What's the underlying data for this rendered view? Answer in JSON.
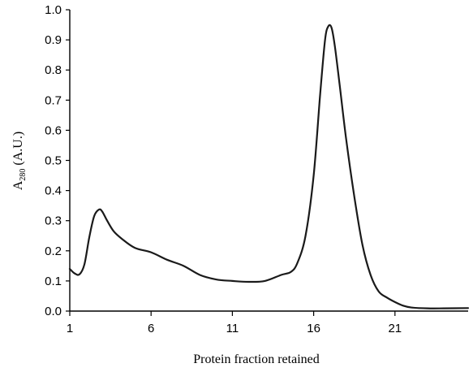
{
  "chart_data": {
    "type": "line",
    "title": "",
    "xlabel": "Protein fraction retained",
    "ylabel_main": "A",
    "ylabel_sub": "280",
    "ylabel_units": "(A.U.)",
    "xlim": [
      1,
      25.5
    ],
    "ylim": [
      0,
      1.0
    ],
    "x_ticks": [
      1,
      6,
      11,
      16,
      21
    ],
    "x_tick_labels": [
      "1",
      "6",
      "11",
      "16",
      "21"
    ],
    "y_ticks": [
      0.0,
      0.1,
      0.2,
      0.3,
      0.4,
      0.5,
      0.6,
      0.7,
      0.8,
      0.9,
      1.0
    ],
    "y_tick_labels": [
      "0.0",
      "0.1",
      "0.2",
      "0.3",
      "0.4",
      "0.5",
      "0.6",
      "0.7",
      "0.8",
      "0.9",
      "1.0"
    ],
    "grid": false,
    "series": [
      {
        "color": "#1a1a1a",
        "x": [
          1,
          1.3,
          1.6,
          1.9,
          2.2,
          2.5,
          2.8,
          3.0,
          3.3,
          3.7,
          4.2,
          5.0,
          6.0,
          7.0,
          8.0,
          9.0,
          10.0,
          11.0,
          12.0,
          13.0,
          14.0,
          14.6,
          15.0,
          15.5,
          16.0,
          16.4,
          16.7,
          16.9,
          17.1,
          17.3,
          17.6,
          18.0,
          18.5,
          19.0,
          19.5,
          20.0,
          20.5,
          21.0,
          21.5,
          22.0,
          23.0,
          24.0,
          25.5
        ],
        "y": [
          0.14,
          0.125,
          0.122,
          0.155,
          0.245,
          0.315,
          0.337,
          0.33,
          0.3,
          0.265,
          0.24,
          0.21,
          0.195,
          0.17,
          0.15,
          0.12,
          0.105,
          0.1,
          0.097,
          0.1,
          0.12,
          0.13,
          0.16,
          0.25,
          0.45,
          0.72,
          0.9,
          0.945,
          0.94,
          0.88,
          0.75,
          0.57,
          0.38,
          0.22,
          0.12,
          0.065,
          0.045,
          0.03,
          0.018,
          0.012,
          0.009,
          0.009,
          0.01
        ]
      }
    ]
  }
}
